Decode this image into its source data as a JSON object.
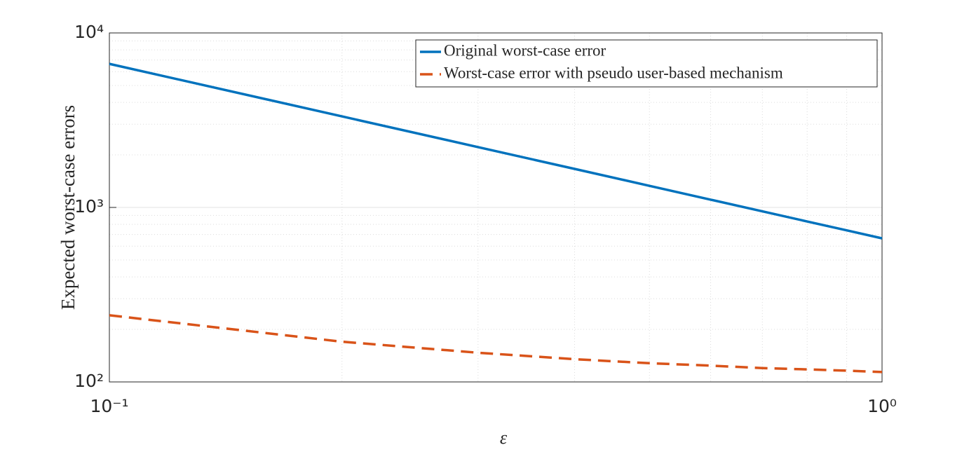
{
  "chart_data": {
    "type": "line",
    "xlabel": "ε",
    "ylabel": "Expected worst-case errors",
    "x": [
      0.1,
      0.2,
      0.3,
      0.4,
      0.5,
      0.6,
      0.7,
      0.8,
      0.9,
      1.0
    ],
    "series": [
      {
        "name": "Original worst-case error",
        "color": "#0072bd",
        "dash": "solid",
        "values": [
          6650,
          3325,
          2217,
          1663,
          1330,
          1108,
          950,
          831,
          739,
          665
        ]
      },
      {
        "name": "Worst-case error with pseudo user-based mechanism",
        "color": "#d95319",
        "dash": "dashed",
        "values": [
          241,
          170,
          147,
          135,
          128,
          124,
          120,
          118,
          116,
          114
        ]
      }
    ],
    "xscale": "log",
    "yscale": "log",
    "xlim": [
      0.1,
      1
    ],
    "ylim": [
      100,
      10000
    ],
    "xticks": [
      {
        "value": 0.1,
        "label": "10⁻¹"
      },
      {
        "value": 1,
        "label": "10⁰"
      }
    ],
    "yticks": [
      {
        "value": 100,
        "label": "10²"
      },
      {
        "value": 1000,
        "label": "10³"
      },
      {
        "value": 10000,
        "label": "10⁴"
      }
    ],
    "xminorticks": [
      0.2,
      0.3,
      0.4,
      0.5,
      0.6,
      0.7,
      0.8,
      0.9
    ],
    "yminorticks": [
      200,
      300,
      400,
      500,
      600,
      700,
      800,
      900,
      2000,
      3000,
      4000,
      5000,
      6000,
      7000,
      8000,
      9000
    ],
    "grid": true,
    "legend": "northeast"
  }
}
